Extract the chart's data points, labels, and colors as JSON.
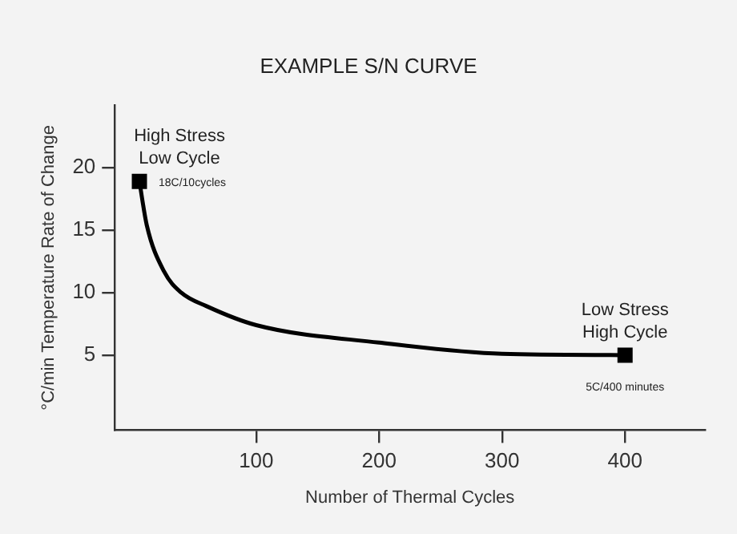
{
  "chart_data": {
    "type": "line",
    "title": "EXAMPLE S/N CURVE",
    "xlabel": "Number of Thermal Cycles",
    "ylabel": "°C/min Temperature Rate of Change",
    "xlim": [
      -15,
      465
    ],
    "xticks": [
      100,
      200,
      300,
      400
    ],
    "ylim": [
      -1,
      25
    ],
    "yticks": [
      5,
      10,
      15,
      20
    ],
    "grid": false,
    "legend": false,
    "series": [
      {
        "type": "line",
        "color": "#000000",
        "marker": "none",
        "x": [
          5,
          11,
          25,
          39,
          60,
          100,
          200,
          300,
          400
        ],
        "values": [
          18.9,
          15.4,
          11.7,
          10,
          8.9,
          7.4,
          6,
          5.1,
          5
        ]
      },
      {
        "type": "scatter",
        "color": "#000000",
        "marker": "square",
        "x": [
          5,
          400
        ],
        "values": [
          18.9,
          5
        ]
      }
    ],
    "annotations": [
      "High Stress\nLow Cycle",
      {
        "text": "18C/10cycles",
        "x": 5,
        "y": 18.9
      },
      "Low Stress\nHigh Cycle",
      {
        "text": "5C/400 minutes",
        "x": 400,
        "y": 5
      }
    ]
  }
}
